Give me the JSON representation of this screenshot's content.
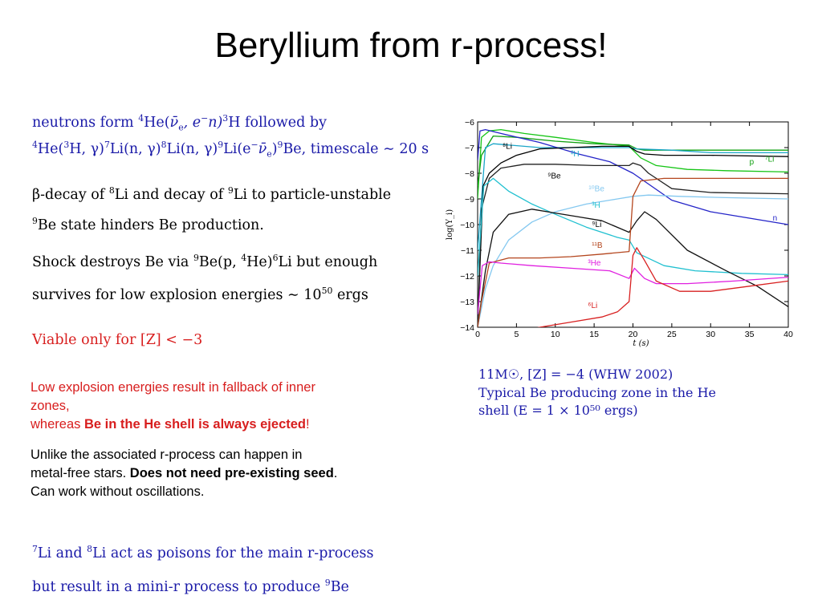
{
  "slide": {
    "title": "Beryllium from r-process!",
    "block1": {
      "line1_a": "neutrons form ",
      "line1_b": "4",
      "line1_c": "He(",
      "line1_d": "ν̄",
      "line1_e": "e",
      "line1_f": ", e",
      "line1_g": "−",
      "line1_h": "n)",
      "line1_i": "3",
      "line1_j": "H followed by",
      "line2_a": "4",
      "line2_b": "He(",
      "line2_c": "3",
      "line2_d": "H, γ)",
      "line2_e": "7",
      "line2_f": "Li(n, γ)",
      "line2_g": "8",
      "line2_h": "Li(n, γ)",
      "line2_i": "9",
      "line2_j": "Li(e",
      "line2_k": "−",
      "line2_l": "ν̄",
      "line2_m": "e",
      "line2_n": ")",
      "line2_o": "9",
      "line2_p": "Be, timescale ∼ 20 s"
    },
    "block2": {
      "l1_a": "β-decay of ",
      "l1_b": "8",
      "l1_c": "Li and decay of ",
      "l1_d": "9",
      "l1_e": "Li to particle-unstable",
      "l2_a": "9",
      "l2_b": "Be state hinders Be production."
    },
    "block3": {
      "l1_a": "Shock destroys Be via ",
      "l1_b": "9",
      "l1_c": "Be(p, ",
      "l1_d": "4",
      "l1_e": "He)",
      "l1_f": "6",
      "l1_g": "Li but enough",
      "l2_a": "survives for low explosion energies ∼ 10",
      "l2_b": "50",
      "l2_c": " ergs"
    },
    "viable": "Viable only for [Z] < −3",
    "red_note": {
      "l1": "Low explosion energies result in fallback of inner",
      "l2": "zones,",
      "l3_a": "whereas ",
      "l3_b": "Be in the He shell is always ejected",
      "l3_c": "!"
    },
    "black_note": {
      "l1": "Unlike the associated r-process can happen in",
      "l2_a": "metal-free stars. ",
      "l2_b": "Does not need pre-existing seed",
      "l2_c": ".",
      "l3": "Can work without oscillations."
    },
    "bottom": {
      "l1_a": "7",
      "l1_b": "Li and ",
      "l1_c": "8",
      "l1_d": "Li act as poisons for the main r-process",
      "l2_a": "but result in a mini-r process to produce ",
      "l2_b": "9",
      "l2_c": "Be"
    },
    "caption": {
      "l1": "11M☉, [Z] = −4 (WHW 2002)",
      "l2": "Typical Be producing zone in the He",
      "l3": "shell (E = 1 × 10⁵⁰ ergs)"
    }
  },
  "chart_data": {
    "type": "line",
    "xlabel": "t (s)",
    "ylabel": "log(Y_i)",
    "xlim": [
      0,
      40
    ],
    "ylim": [
      -14,
      -6
    ],
    "xticks": [
      0,
      5,
      10,
      15,
      20,
      25,
      30,
      35,
      40
    ],
    "yticks": [
      -6,
      -7,
      -8,
      -9,
      -10,
      -11,
      -12,
      -13,
      -14
    ],
    "series": [
      {
        "name": "⁷Li",
        "color": "#16c516",
        "x": [
          0,
          0.5,
          1.5,
          3,
          6,
          10,
          15,
          19.5,
          20,
          21,
          23,
          27,
          32,
          40
        ],
        "y": [
          -9,
          -6.6,
          -6.35,
          -6.3,
          -6.45,
          -6.6,
          -6.8,
          -6.95,
          -7.1,
          -7.4,
          -7.7,
          -7.85,
          -7.9,
          -7.95
        ]
      },
      {
        "name": "p",
        "color": "#10a010",
        "x": [
          0,
          0.5,
          2,
          5,
          10,
          15,
          19.5,
          20.5,
          21.5,
          24,
          30,
          40
        ],
        "y": [
          -8.5,
          -7.3,
          -6.55,
          -6.6,
          -6.75,
          -6.85,
          -6.9,
          -7.05,
          -7.1,
          -7.1,
          -7.1,
          -7.1
        ]
      },
      {
        "name": "²H",
        "color": "#1aa5c8",
        "x": [
          0,
          1,
          2,
          4,
          8,
          12,
          16,
          19.5,
          20.5,
          25,
          30,
          40
        ],
        "y": [
          -11,
          -7.0,
          -6.85,
          -6.9,
          -7.0,
          -7.0,
          -7.0,
          -7.0,
          -7.05,
          -7.1,
          -7.2,
          -7.2
        ]
      },
      {
        "name": "n",
        "color": "#2323c8",
        "x": [
          0,
          0.3,
          1,
          3,
          8,
          13,
          17,
          20,
          25,
          30,
          35,
          40
        ],
        "y": [
          -7.5,
          -6.35,
          -6.3,
          -6.45,
          -6.8,
          -7.25,
          -7.55,
          -8.0,
          -9.05,
          -9.5,
          -9.75,
          -10.0
        ]
      },
      {
        "name": "⁸Li",
        "color": "#000000",
        "x": [
          0,
          0.7,
          1.5,
          3,
          5,
          8,
          12,
          16,
          19.5,
          20.5,
          21.5,
          24,
          30,
          40
        ],
        "y": [
          -14,
          -8.5,
          -8.0,
          -7.6,
          -7.3,
          -7.05,
          -7.0,
          -6.95,
          -6.95,
          -7.15,
          -7.25,
          -7.3,
          -7.3,
          -7.35
        ]
      },
      {
        "name": "⁹Be",
        "color": "#222222",
        "x": [
          0,
          0.5,
          1.5,
          3,
          6,
          10,
          15,
          19.5,
          20,
          21,
          22,
          25,
          30,
          40
        ],
        "y": [
          -14,
          -9.4,
          -8.2,
          -7.8,
          -7.65,
          -7.65,
          -7.7,
          -7.7,
          -7.6,
          -7.7,
          -8.0,
          -8.6,
          -8.75,
          -8.8
        ]
      },
      {
        "name": "¹⁰Be",
        "color": "#84c8f0",
        "x": [
          0,
          1,
          2,
          4,
          7,
          10,
          14,
          18,
          20,
          22,
          26,
          32,
          40
        ],
        "y": [
          -14,
          -12.5,
          -11.6,
          -10.6,
          -9.9,
          -9.5,
          -9.2,
          -9.0,
          -8.9,
          -8.85,
          -8.9,
          -8.95,
          -9.0
        ]
      },
      {
        "name": "³H",
        "color": "#20c0d0",
        "x": [
          0,
          0.8,
          2,
          4,
          7,
          10,
          14,
          18,
          19.5,
          20.5,
          24,
          28,
          34,
          40
        ],
        "y": [
          -12,
          -8.5,
          -8.2,
          -8.7,
          -9.2,
          -9.6,
          -10.1,
          -10.5,
          -10.6,
          -11.1,
          -11.6,
          -11.8,
          -11.9,
          -11.95
        ]
      },
      {
        "name": "⁹Li",
        "color": "#111111",
        "x": [
          0,
          1,
          2,
          4,
          7,
          10,
          13,
          16,
          19.5,
          20.5,
          21.5,
          23,
          27,
          32,
          36,
          40
        ],
        "y": [
          -14,
          -11.8,
          -10.3,
          -9.6,
          -9.4,
          -9.55,
          -9.7,
          -9.85,
          -10.3,
          -9.85,
          -9.5,
          -9.8,
          -11.0,
          -11.8,
          -12.4,
          -13.2
        ]
      },
      {
        "name": "¹¹B",
        "color": "#b4461e",
        "x": [
          0,
          0.5,
          1.5,
          4,
          8,
          12,
          16,
          19.5,
          20,
          21,
          24,
          30,
          40
        ],
        "y": [
          -14,
          -13,
          -11.5,
          -11.3,
          -11.3,
          -11.25,
          -11.15,
          -11.05,
          -8.9,
          -8.3,
          -8.2,
          -8.2,
          -8.2
        ]
      },
      {
        "name": "³He",
        "color": "#e020e0",
        "x": [
          0,
          0.6,
          1.5,
          3,
          7,
          12,
          17,
          19.5,
          20.2,
          21.5,
          23,
          27,
          33,
          40
        ],
        "y": [
          -13.5,
          -11.6,
          -11.45,
          -11.5,
          -11.6,
          -11.7,
          -11.8,
          -12.1,
          -11.7,
          -12.1,
          -12.3,
          -12.3,
          -12.2,
          -12.05
        ]
      },
      {
        "name": "⁶Li",
        "color": "#d82020",
        "x": [
          0,
          3,
          8,
          12,
          16,
          18,
          19.5,
          20,
          20.5,
          21.5,
          23,
          26,
          30,
          35,
          40
        ],
        "y": [
          -14.5,
          -14.3,
          -14.0,
          -13.8,
          -13.6,
          -13.4,
          -13.0,
          -11.2,
          -10.9,
          -11.4,
          -12.2,
          -12.6,
          -12.6,
          -12.4,
          -12.2
        ]
      }
    ]
  }
}
